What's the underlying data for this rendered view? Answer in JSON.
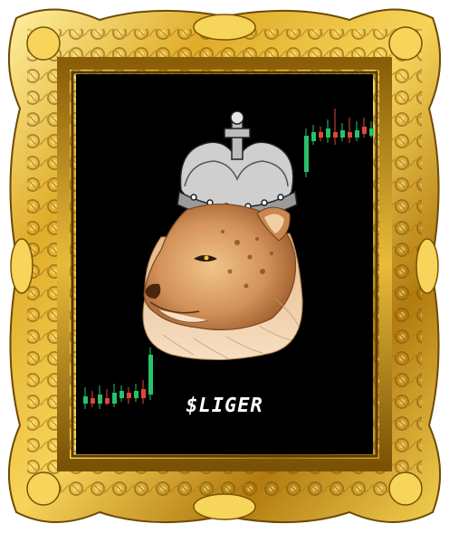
{
  "caption": "$LIGER",
  "colors": {
    "canvas": "#000000",
    "frame_gold": "#d9a521",
    "frame_shadow": "#6b4a06",
    "frame_highlight": "#fff3a8",
    "candle_up": "#27c26a",
    "candle_down": "#e0463a",
    "crown": "#d8d8d8",
    "liger_fur": "#d99a5b"
  },
  "icons": {
    "frame": "ornate-gold-frame",
    "crown": "royal-crown-icon",
    "animal": "liger-head"
  }
}
